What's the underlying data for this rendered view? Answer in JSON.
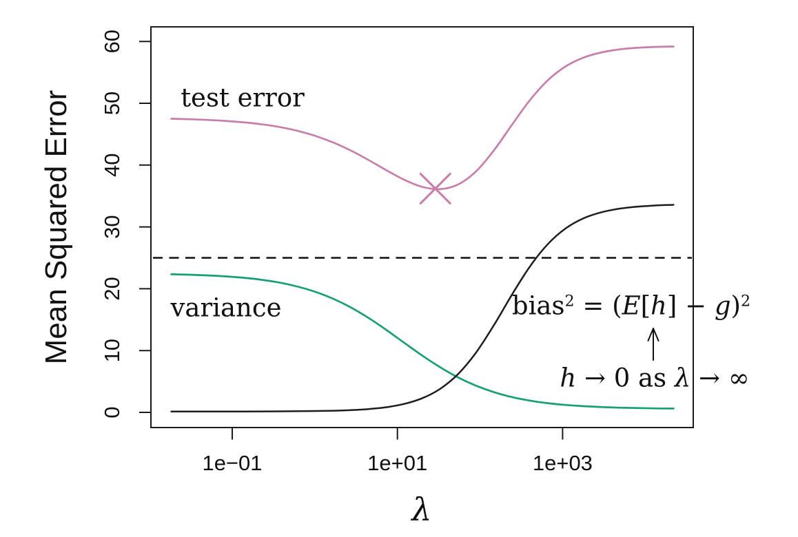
{
  "figure": {
    "background": "#ffffff",
    "text_color": "#111111",
    "axis_color": "#1a1a1a"
  },
  "chart_data": {
    "type": "line",
    "title": "",
    "xlabel": "λ",
    "ylabel": "Mean Squared Error",
    "x_scale": "log10",
    "grid": false,
    "legend_position": "none",
    "x_tick_labels": [
      "1e−01",
      "1e+01",
      "1e+03"
    ],
    "x_tick_log10": [
      -1,
      1,
      3
    ],
    "y_tick_labels": [
      "0",
      "10",
      "20",
      "30",
      "40",
      "50",
      "60"
    ],
    "y_ticks": [
      0,
      10,
      20,
      30,
      40,
      50,
      60
    ],
    "xlim_log10": [
      -1.98,
      4.59
    ],
    "ylim": [
      -2.4,
      62.4
    ],
    "x_ln_lambda": [
      -4,
      -3.5,
      -3,
      -2.5,
      -2,
      -1.5,
      -1,
      -0.5,
      0,
      0.5,
      1,
      1.5,
      2,
      2.5,
      3,
      3.5,
      4,
      4.5,
      5,
      5.5,
      6,
      6.5,
      7,
      7.5,
      8,
      8.5,
      9,
      9.5,
      10
    ],
    "series": [
      {
        "name": "test error",
        "color": "#c97dab",
        "width": 2.7,
        "values": [
          47.49,
          47.42,
          47.31,
          47.15,
          46.93,
          46.62,
          46.18,
          45.57,
          44.75,
          43.68,
          42.36,
          40.81,
          39.15,
          37.61,
          36.47,
          36.11,
          36.88,
          39.02,
          42.44,
          46.55,
          50.53,
          53.74,
          55.99,
          57.41,
          58.24,
          58.72,
          58.98,
          59.12,
          59.19
        ]
      },
      {
        "name": "variance",
        "color": "#14a073",
        "width": 2.7,
        "values": [
          22.34,
          22.27,
          22.16,
          22.0,
          21.78,
          21.46,
          21.01,
          20.38,
          19.53,
          18.41,
          16.99,
          15.27,
          13.31,
          11.23,
          9.17,
          7.28,
          5.64,
          4.3,
          3.26,
          2.47,
          1.9,
          1.49,
          1.2,
          1.0,
          0.86,
          0.76,
          0.7,
          0.65,
          0.62
        ]
      },
      {
        "name": "bias squared",
        "color": "#1c1c1c",
        "width": 2.5,
        "values": [
          0.15,
          0.15,
          0.15,
          0.15,
          0.15,
          0.16,
          0.17,
          0.19,
          0.22,
          0.27,
          0.37,
          0.54,
          0.84,
          1.38,
          2.3,
          3.83,
          6.24,
          9.72,
          14.18,
          19.08,
          23.63,
          27.25,
          29.79,
          31.41,
          32.38,
          32.96,
          33.28,
          33.47,
          33.57
        ]
      }
    ],
    "noise_line": {
      "value": 25,
      "style": "dashed",
      "color": "#222222",
      "meaning": "irreducible error"
    },
    "min_marker": {
      "series": "test error",
      "ln_lambda": 3.36,
      "value": 36.2,
      "shape": "x-cross",
      "color": "#c97dab"
    }
  },
  "annotations": {
    "test_error_label": "test error",
    "variance_label": "variance",
    "equation": {
      "bias": "bias",
      "bias_sup": "2",
      "equals_open": " = (",
      "E": "E",
      "lbracket": "[",
      "h": "h",
      "rbracket_minus": "] − ",
      "g": "g",
      "rparen": ")",
      "sup": "2"
    },
    "limit_note": {
      "h": "h",
      "mid": " → 0 as ",
      "lambda": "λ",
      "tail": " → ∞"
    }
  }
}
